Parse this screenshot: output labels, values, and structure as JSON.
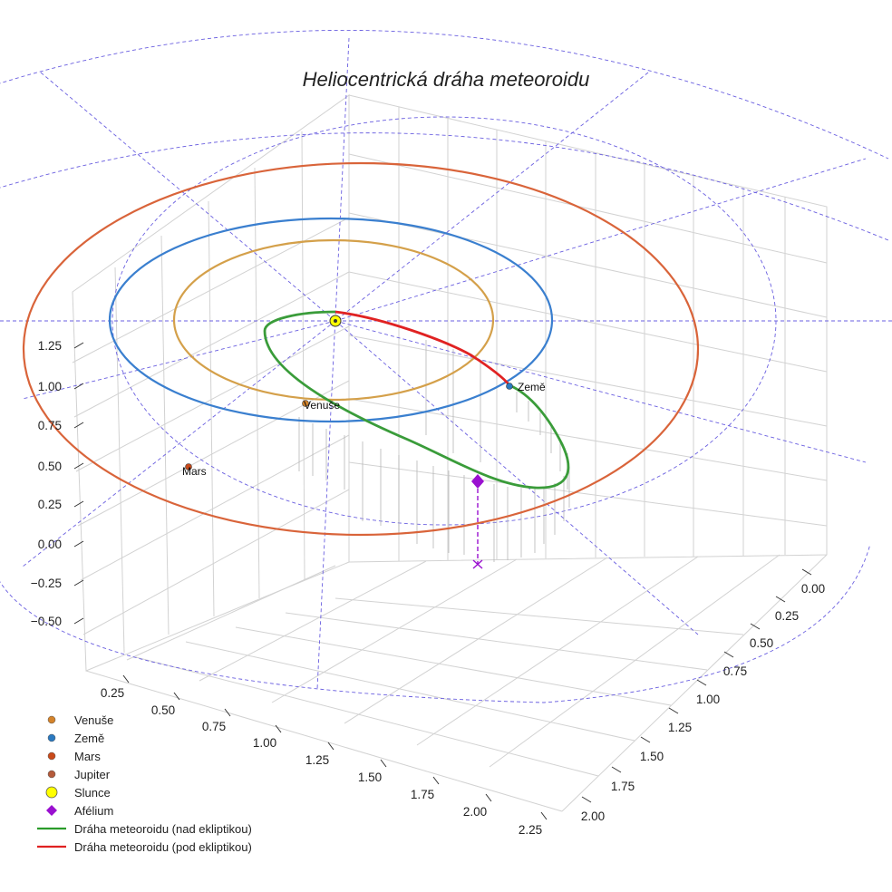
{
  "chart_data": {
    "type": "scatter3d",
    "title": "Heliocentrická dráha meteoroidu",
    "axes": {
      "x": {
        "ticks": [
          "0.25",
          "0.50",
          "0.75",
          "1.00",
          "1.25",
          "1.50",
          "1.75",
          "2.00",
          "2.25"
        ]
      },
      "y": {
        "ticks": [
          "0.00",
          "0.25",
          "0.50",
          "0.75",
          "1.00",
          "1.25",
          "1.50",
          "1.75",
          "2.00"
        ]
      },
      "z": {
        "ticks": [
          "−0.50",
          "−0.25",
          "0.00",
          "0.25",
          "0.50",
          "0.75",
          "1.00",
          "1.25"
        ]
      }
    },
    "orbits": [
      {
        "name": "Venuše",
        "semi_major_axis_au": 0.72,
        "color": "#d4a04a"
      },
      {
        "name": "Země",
        "semi_major_axis_au": 1.0,
        "color": "#3a7fcf"
      },
      {
        "name": "Mars",
        "semi_major_axis_au": 1.52,
        "color": "#d9643a"
      }
    ],
    "planets": [
      {
        "name": "Venuše",
        "label": "Venuše",
        "color": "#d4832a"
      },
      {
        "name": "Země",
        "label": "Země",
        "color": "#2a79c0"
      },
      {
        "name": "Mars",
        "label": "Mars",
        "color": "#c94a1a"
      }
    ],
    "meteoroid": {
      "above_ecliptic_color": "#3a9c3a",
      "below_ecliptic_color": "#e02222",
      "aphelion_color": "#9a10d0"
    },
    "legend": [
      {
        "label": "Venuše",
        "marker": "dot",
        "color": "#d4832a"
      },
      {
        "label": "Země",
        "marker": "dot",
        "color": "#2a79c0"
      },
      {
        "label": "Mars",
        "marker": "dot",
        "color": "#c94a1a"
      },
      {
        "label": "Jupiter",
        "marker": "dot",
        "color": "#b45a3a"
      },
      {
        "label": "Slunce",
        "marker": "sun",
        "color": "#ffff00"
      },
      {
        "label": "Afélium",
        "marker": "diamond",
        "color": "#9a10d0"
      },
      {
        "label": "Dráha meteoroidu (nad ekliptikou)",
        "marker": "line",
        "color": "#2a9c2a"
      },
      {
        "label": "Dráha meteoroidu (pod ekliptikou)",
        "marker": "line",
        "color": "#e02222"
      }
    ]
  }
}
